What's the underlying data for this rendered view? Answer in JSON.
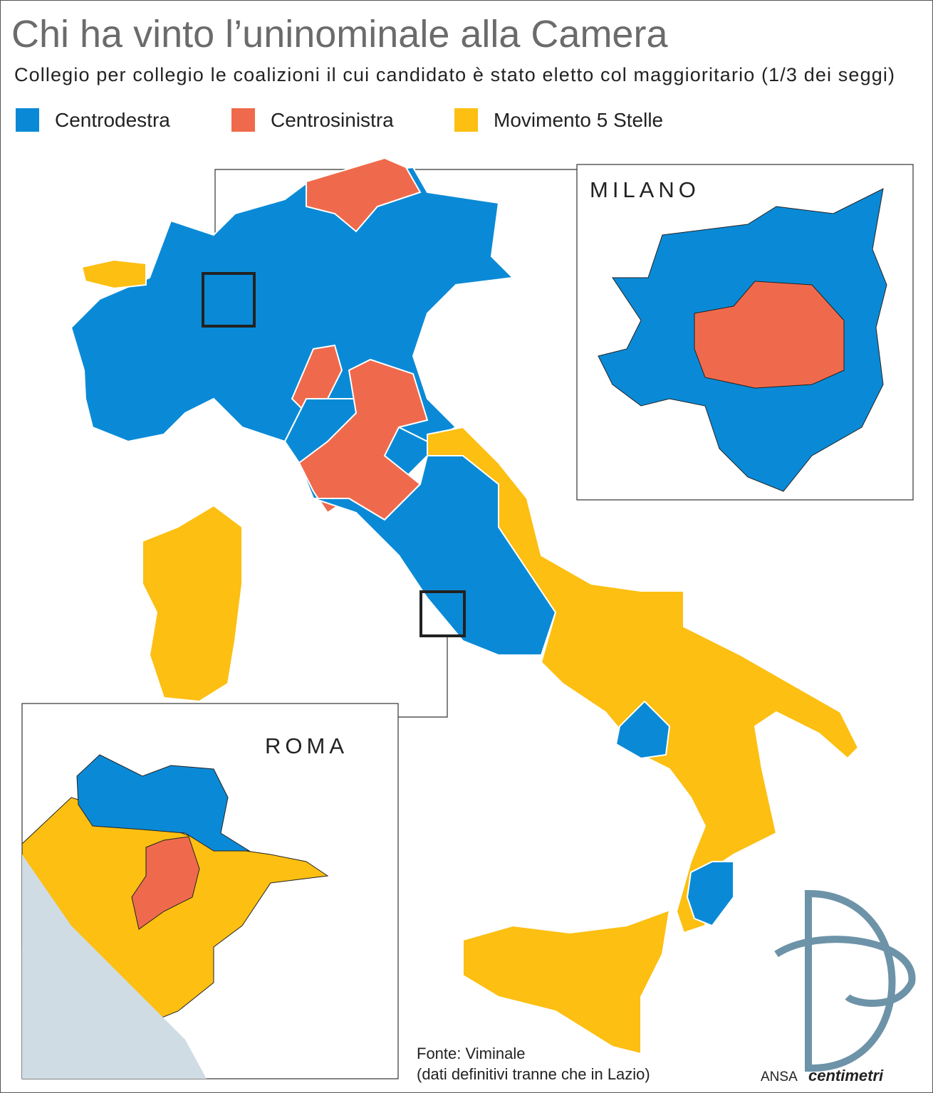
{
  "header": {
    "title": "Chi ha vinto l’uninominale alla Camera",
    "subtitle": "Collegio per collegio le coalizioni il cui candidato è stato eletto col maggioritario (1/3 dei seggi)"
  },
  "legend": {
    "items": [
      {
        "label": "Centrodestra",
        "color": "#0a8ad6"
      },
      {
        "label": "Centrosinistra",
        "color": "#ef6a4c"
      },
      {
        "label": "Movimento 5 Stelle",
        "color": "#fcbf12"
      }
    ]
  },
  "insets": {
    "milano": {
      "label": "MILANO"
    },
    "roma": {
      "label": "ROMA"
    }
  },
  "source": {
    "lines": [
      "Fonte: Viminale",
      "(dati definitivi tranne che in Lazio)"
    ]
  },
  "credit": {
    "agency": "ANSA",
    "brand": "centimetri"
  }
}
